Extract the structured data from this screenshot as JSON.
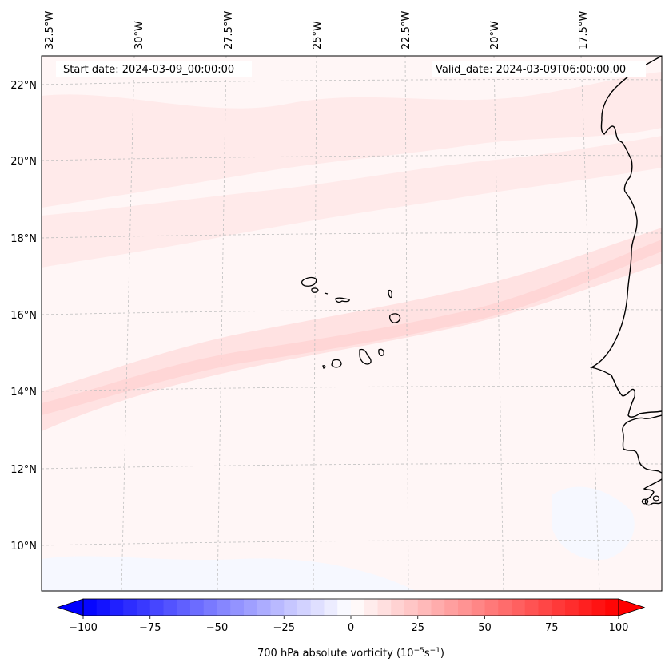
{
  "map": {
    "start_date": "Start date: 2024-03-09_00:00:00",
    "valid_date": "Valid_date: 2024-03-09T06:00:00.00",
    "lon_labels": [
      "32.5°W",
      "30°W",
      "27.5°W",
      "25°W",
      "22.5°W",
      "20°W",
      "17.5°W"
    ],
    "lat_labels": [
      "22°N",
      "20°N",
      "18°N",
      "16°N",
      "14°N",
      "12°N",
      "10°N"
    ],
    "land_outline_color": "#000000",
    "gridline_color": "#bfbfbf"
  },
  "colorbar": {
    "title": "700 hPa absolute vorticity (10",
    "exp1": "−5",
    "mid": "s",
    "exp2": "−1",
    "close": ")",
    "ticks": [
      "−100",
      "−75",
      "−50",
      "−25",
      "0",
      "25",
      "50",
      "75",
      "100"
    ],
    "vmin": -100,
    "vmax": 100,
    "step": 5,
    "low_color": "#0000ff",
    "high_color": "#ff0000"
  }
}
